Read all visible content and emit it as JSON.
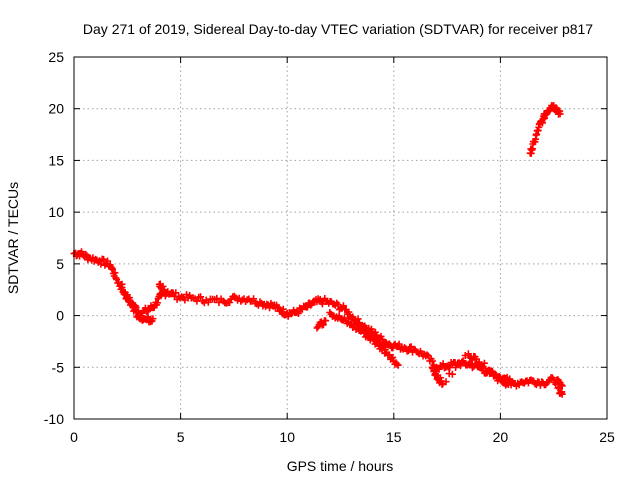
{
  "chart_data": {
    "type": "scatter",
    "title": "Day 271 of 2019, Sidereal Day-to-day VTEC variation (SDTVAR) for receiver p817",
    "xlabel": "GPS time / hours",
    "ylabel": "SDTVAR / TECUs",
    "xlim": [
      0,
      25
    ],
    "ylim": [
      -10,
      25
    ],
    "xticks": [
      0,
      5,
      10,
      15,
      20,
      25
    ],
    "yticks": [
      -10,
      -5,
      0,
      5,
      10,
      15,
      20,
      25
    ],
    "grid": true,
    "marker": "+",
    "color": "#ff0000",
    "series": [
      {
        "name": "main trace",
        "x": [
          0.0,
          0.3,
          0.7,
          1.2,
          1.7,
          2.0,
          2.4,
          2.8,
          3.1,
          3.5,
          3.8,
          4.1,
          4.4,
          4.9,
          5.5,
          6.2,
          7.0,
          7.6,
          8.2,
          8.8,
          9.3,
          9.7,
          10.0,
          10.4,
          10.9,
          11.3,
          11.7,
          12.2,
          12.7,
          13.2,
          13.7,
          14.2,
          14.6,
          15.0,
          15.5,
          16.0,
          16.5,
          17.0,
          17.5,
          18.0,
          18.5,
          19.0,
          19.5,
          20.0,
          20.5,
          21.0,
          21.5,
          22.0,
          22.5,
          22.9
        ],
        "y": [
          6.0,
          6.0,
          5.6,
          5.3,
          4.9,
          3.5,
          2.0,
          1.0,
          0.2,
          0.6,
          1.0,
          2.0,
          2.3,
          1.8,
          1.7,
          1.5,
          1.4,
          1.7,
          1.6,
          1.2,
          1.0,
          0.5,
          0.2,
          0.3,
          0.8,
          1.3,
          1.4,
          1.1,
          0.6,
          -0.4,
          -1.2,
          -1.9,
          -2.6,
          -2.9,
          -3.1,
          -3.3,
          -3.9,
          -5.0,
          -4.9,
          -4.6,
          -4.7,
          -5.0,
          -5.6,
          -6.2,
          -6.7,
          -6.4,
          -6.3,
          -6.5,
          -6.2,
          -6.8
        ]
      },
      {
        "name": "secondary branches",
        "x": [
          2.2,
          2.6,
          3.0,
          3.4,
          3.7,
          12.0,
          12.5,
          13.0,
          13.6,
          14.2,
          14.8,
          15.2,
          13.0,
          13.5,
          14.0,
          14.6,
          16.8,
          17.0,
          17.3,
          18.5,
          19.0,
          19.5,
          20.0,
          20.5,
          22.7,
          22.9,
          11.4,
          11.8,
          4.0,
          4.2
        ],
        "y": [
          3.0,
          1.3,
          0.0,
          -0.4,
          -0.3,
          0.3,
          -0.3,
          -0.9,
          -1.7,
          -2.7,
          -3.8,
          -4.8,
          -0.2,
          -1.2,
          -2.2,
          -3.3,
          -5.0,
          -5.8,
          -6.6,
          -3.7,
          -4.5,
          -5.3,
          -6.0,
          -6.4,
          -7.0,
          -7.6,
          -1.2,
          -0.5,
          3.0,
          2.5
        ]
      },
      {
        "name": "late rising segment",
        "x": [
          21.4,
          21.6,
          21.8,
          22.0,
          22.2,
          22.4,
          22.6,
          22.8
        ],
        "y": [
          15.7,
          16.8,
          18.2,
          19.0,
          19.8,
          20.3,
          20.1,
          19.5
        ]
      }
    ]
  }
}
